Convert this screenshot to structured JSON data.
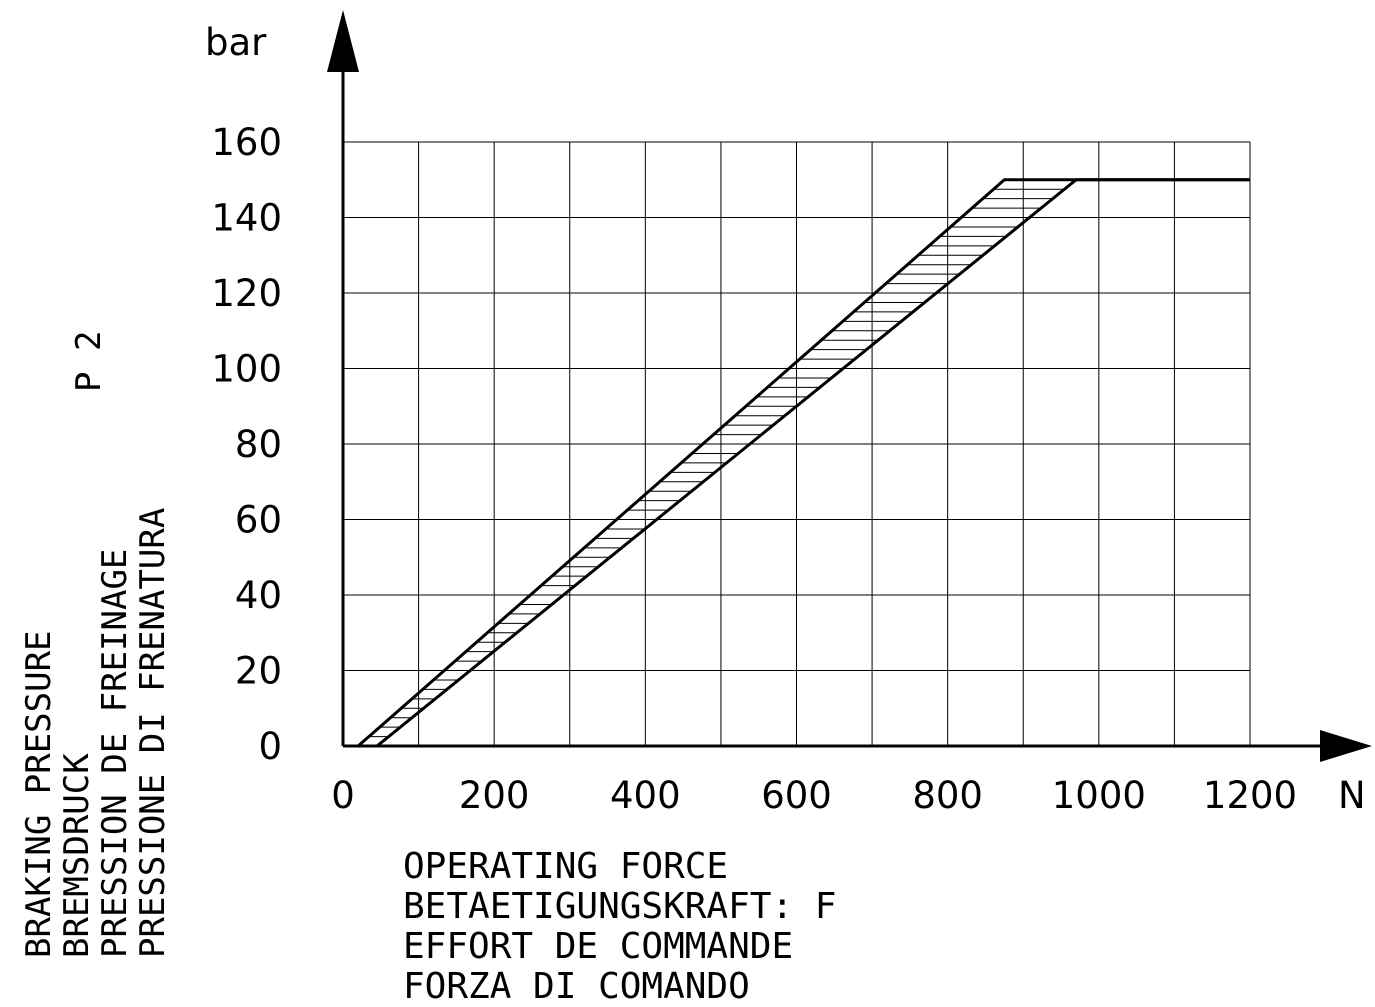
{
  "chart_data": {
    "type": "line",
    "y_unit": "bar",
    "x_unit": "N",
    "x_ticks": [
      "0",
      "200",
      "400",
      "600",
      "800",
      "1000",
      "1200"
    ],
    "y_ticks": [
      "0",
      "20",
      "40",
      "60",
      "80",
      "100",
      "120",
      "140",
      "160"
    ],
    "xlim": [
      0,
      1200
    ],
    "ylim": [
      0,
      160
    ],
    "grid": true,
    "xlabel_lines": [
      "OPERATING FORCE",
      "BETAETIGUNGSKRAFT: F",
      "EFFORT DE COMMANDE",
      "FORZA DI COMANDO"
    ],
    "ylabel_lines": [
      "BRAKING PRESSURE",
      "BREMSDRUCK",
      "PRESSION DE FREINAGE",
      "PRESSIONE DI FRENATURA"
    ],
    "ylabel_symbol": "P 2",
    "series": [
      {
        "values": [
          [
            20,
            0
          ],
          [
            875,
            150
          ],
          [
            1200,
            150
          ]
        ]
      },
      {
        "values": [
          [
            45,
            0
          ],
          [
            970,
            150
          ],
          [
            1200,
            150
          ]
        ]
      }
    ],
    "band": {
      "hatched": true,
      "between_series": [
        0,
        1
      ]
    }
  }
}
